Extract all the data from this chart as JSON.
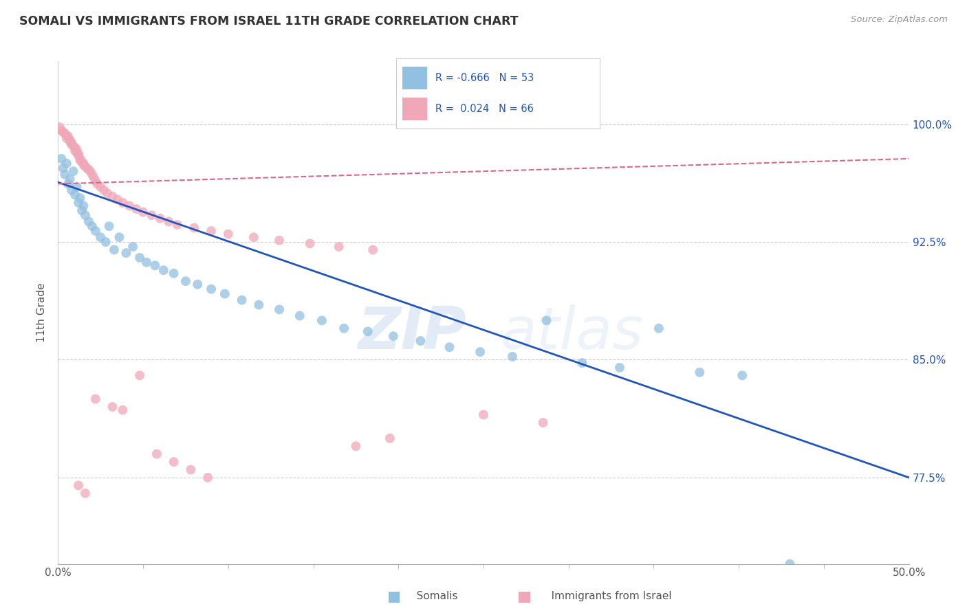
{
  "title": "SOMALI VS IMMIGRANTS FROM ISRAEL 11TH GRADE CORRELATION CHART",
  "source": "Source: ZipAtlas.com",
  "ylabel": "11th Grade",
  "y_tick_labels": [
    "77.5%",
    "85.0%",
    "92.5%",
    "100.0%"
  ],
  "y_tick_values": [
    0.775,
    0.85,
    0.925,
    1.0
  ],
  "x_lim": [
    0.0,
    0.5
  ],
  "y_lim": [
    0.72,
    1.04
  ],
  "blue_color": "#92c0e0",
  "pink_color": "#f0a8b8",
  "blue_line_color": "#2255bb",
  "pink_line_color": "#dd6688",
  "blue_line_x": [
    0.0,
    0.5
  ],
  "blue_line_y": [
    0.963,
    0.775
  ],
  "pink_line_x": [
    0.0,
    0.5
  ],
  "pink_line_y": [
    0.962,
    0.978
  ],
  "somali_x": [
    0.002,
    0.003,
    0.004,
    0.005,
    0.006,
    0.007,
    0.008,
    0.009,
    0.01,
    0.011,
    0.012,
    0.013,
    0.014,
    0.015,
    0.016,
    0.018,
    0.02,
    0.022,
    0.025,
    0.028,
    0.03,
    0.033,
    0.036,
    0.04,
    0.044,
    0.048,
    0.052,
    0.057,
    0.062,
    0.068,
    0.075,
    0.082,
    0.09,
    0.098,
    0.108,
    0.118,
    0.13,
    0.142,
    0.155,
    0.168,
    0.182,
    0.197,
    0.213,
    0.23,
    0.248,
    0.267,
    0.287,
    0.308,
    0.33,
    0.353,
    0.377,
    0.402,
    0.43
  ],
  "somali_y": [
    0.978,
    0.972,
    0.968,
    0.975,
    0.962,
    0.965,
    0.958,
    0.97,
    0.955,
    0.96,
    0.95,
    0.953,
    0.945,
    0.948,
    0.942,
    0.938,
    0.935,
    0.932,
    0.928,
    0.925,
    0.935,
    0.92,
    0.928,
    0.918,
    0.922,
    0.915,
    0.912,
    0.91,
    0.907,
    0.905,
    0.9,
    0.898,
    0.895,
    0.892,
    0.888,
    0.885,
    0.882,
    0.878,
    0.875,
    0.87,
    0.868,
    0.865,
    0.862,
    0.858,
    0.855,
    0.852,
    0.875,
    0.848,
    0.845,
    0.87,
    0.842,
    0.84,
    0.72
  ],
  "israel_x": [
    0.001,
    0.002,
    0.003,
    0.004,
    0.005,
    0.005,
    0.006,
    0.007,
    0.007,
    0.008,
    0.008,
    0.009,
    0.01,
    0.01,
    0.011,
    0.011,
    0.012,
    0.012,
    0.013,
    0.013,
    0.014,
    0.015,
    0.015,
    0.016,
    0.017,
    0.018,
    0.019,
    0.02,
    0.021,
    0.022,
    0.023,
    0.025,
    0.027,
    0.029,
    0.032,
    0.035,
    0.038,
    0.042,
    0.046,
    0.05,
    0.055,
    0.06,
    0.065,
    0.07,
    0.08,
    0.09,
    0.1,
    0.115,
    0.13,
    0.148,
    0.165,
    0.185,
    0.048,
    0.022,
    0.032,
    0.038,
    0.25,
    0.285,
    0.195,
    0.175,
    0.058,
    0.068,
    0.078,
    0.088,
    0.012,
    0.016
  ],
  "israel_y": [
    0.998,
    0.996,
    0.995,
    0.994,
    0.993,
    0.991,
    0.992,
    0.99,
    0.989,
    0.988,
    0.987,
    0.986,
    0.985,
    0.983,
    0.984,
    0.982,
    0.981,
    0.98,
    0.978,
    0.977,
    0.976,
    0.975,
    0.974,
    0.973,
    0.972,
    0.971,
    0.97,
    0.968,
    0.966,
    0.964,
    0.962,
    0.96,
    0.958,
    0.956,
    0.954,
    0.952,
    0.95,
    0.948,
    0.946,
    0.944,
    0.942,
    0.94,
    0.938,
    0.936,
    0.934,
    0.932,
    0.93,
    0.928,
    0.926,
    0.924,
    0.922,
    0.92,
    0.84,
    0.825,
    0.82,
    0.818,
    0.815,
    0.81,
    0.8,
    0.795,
    0.79,
    0.785,
    0.78,
    0.775,
    0.77,
    0.765
  ]
}
